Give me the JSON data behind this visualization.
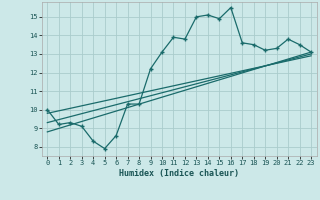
{
  "xlabel": "Humidex (Indice chaleur)",
  "background_color": "#cce8e8",
  "grid_color": "#aacccc",
  "line_color": "#1a6b6b",
  "xlim": [
    -0.5,
    23.5
  ],
  "ylim": [
    7.5,
    15.8
  ],
  "yticks": [
    8,
    9,
    10,
    11,
    12,
    13,
    14,
    15
  ],
  "xticks": [
    0,
    1,
    2,
    3,
    4,
    5,
    6,
    7,
    8,
    9,
    10,
    11,
    12,
    13,
    14,
    15,
    16,
    17,
    18,
    19,
    20,
    21,
    22,
    23
  ],
  "main_x": [
    0,
    1,
    2,
    3,
    4,
    5,
    6,
    7,
    8,
    9,
    10,
    11,
    12,
    13,
    14,
    15,
    16,
    17,
    18,
    19,
    20,
    21,
    22,
    23
  ],
  "main_y": [
    10.0,
    9.2,
    9.3,
    9.1,
    8.3,
    7.9,
    8.6,
    10.3,
    10.3,
    12.2,
    13.1,
    13.9,
    13.8,
    15.0,
    15.1,
    14.9,
    15.5,
    13.6,
    13.5,
    13.2,
    13.3,
    13.8,
    13.5,
    13.1
  ],
  "line1_x": [
    0,
    23
  ],
  "line1_y": [
    8.8,
    13.1
  ],
  "line2_x": [
    0,
    23
  ],
  "line2_y": [
    9.3,
    13.0
  ],
  "line3_x": [
    0,
    23
  ],
  "line3_y": [
    9.8,
    12.9
  ]
}
